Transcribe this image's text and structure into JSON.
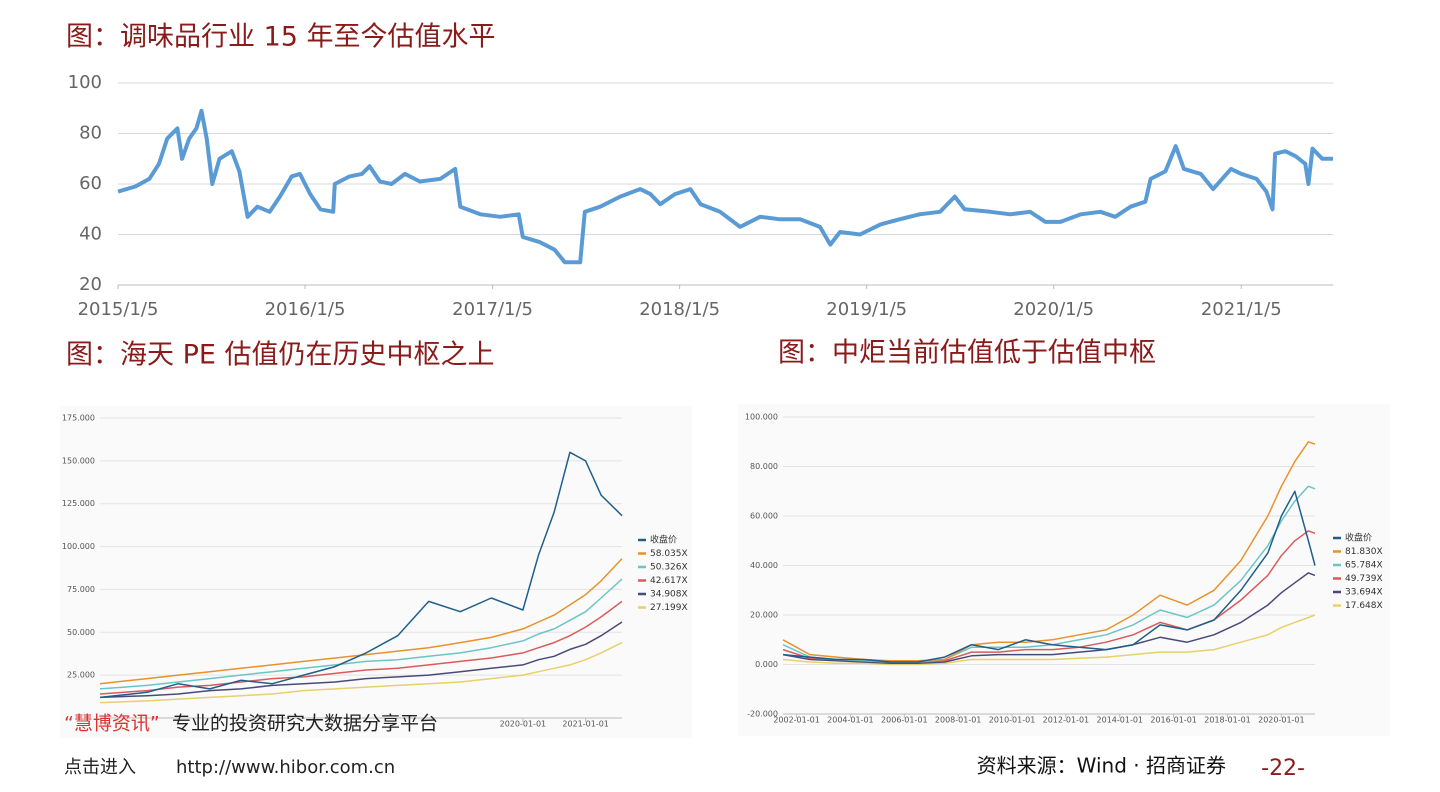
{
  "chart_data": [
    {
      "type": "line",
      "title": "图：调味品行业 15 年至今估值水平",
      "color": "#5b9bd5",
      "grid": true,
      "x": [
        "2015/1/5",
        "2015/2/8",
        "2015/3/7",
        "2015/3/26",
        "2015/4/11",
        "2015/5/1",
        "2015/5/10",
        "2015/5/24",
        "2015/6/7",
        "2015/6/17",
        "2015/6/27",
        "2015/7/8",
        "2015/7/22",
        "2015/8/15",
        "2015/8/30",
        "2015/9/15",
        "2015/10/4",
        "2015/10/28",
        "2015/11/17",
        "2015/12/10",
        "2015/12/26",
        "2016/1/15",
        "2016/2/4",
        "2016/2/29",
        "2016/3/3",
        "2016/4/1",
        "2016/4/25",
        "2016/5/10",
        "2016/5/30",
        "2016/6/22",
        "2016/7/18",
        "2016/8/16",
        "2016/9/25",
        "2016/10/24",
        "2016/11/3",
        "2016/12/12",
        "2017/1/20",
        "2017/2/25",
        "2017/3/5",
        "2017/4/7",
        "2017/5/6",
        "2017/5/26",
        "2017/6/25",
        "2017/7/4",
        "2017/8/3",
        "2017/9/11",
        "2017/10/20",
        "2017/11/9",
        "2017/11/28",
        "2017/12/27",
        "2018/1/26",
        "2018/2/15",
        "2018/3/25",
        "2018/5/3",
        "2018/6/11",
        "2018/7/20",
        "2018/8/28",
        "2018/10/6",
        "2018/10/26",
        "2018/11/14",
        "2018/12/23",
        "2019/2/1",
        "2019/3/10",
        "2019/4/18",
        "2019/5/28",
        "2019/6/26",
        "2019/7/15",
        "2019/9/3",
        "2019/10/12",
        "2019/11/20",
        "2019/12/20",
        "2020/1/18",
        "2020/2/27",
        "2020/4/5",
        "2020/5/4",
        "2020/6/3",
        "2020/7/2",
        "2020/7/12",
        "2020/8/10",
        "2020/8/30",
        "2020/9/15",
        "2020/10/18",
        "2020/11/11",
        "2020/12/16",
        "2021/1/5",
        "2021/2/4",
        "2021/2/23",
        "2021/3/7",
        "2021/3/12",
        "2021/4/1",
        "2021/4/21",
        "2021/5/10",
        "2021/5/16",
        "2021/5/24",
        "2021/6/12",
        "2021/7/3"
      ],
      "values": [
        57,
        59,
        62,
        68,
        78,
        82,
        70,
        78,
        82,
        89,
        78,
        60,
        70,
        73,
        65,
        47,
        51,
        49,
        55,
        63,
        64,
        56,
        50,
        49,
        60,
        63,
        64,
        67,
        61,
        60,
        64,
        61,
        62,
        66,
        51,
        48,
        47,
        48,
        39,
        37,
        34,
        29,
        29,
        49,
        51,
        55,
        58,
        56,
        52,
        56,
        58,
        52,
        49,
        43,
        47,
        46,
        46,
        43,
        36,
        41,
        40,
        44,
        46,
        48,
        49,
        55,
        50,
        49,
        48,
        49,
        45,
        45,
        48,
        49,
        47,
        51,
        53,
        62,
        65,
        75,
        66,
        64,
        58,
        66,
        64,
        62,
        57,
        50,
        72,
        73,
        71,
        68,
        60,
        74,
        70,
        70
      ],
      "xlim": [
        "2015/1/5",
        "2021/7/3"
      ],
      "xticks": [
        "2015/1/5",
        "2016/1/5",
        "2017/1/5",
        "2018/1/5",
        "2019/1/5",
        "2020/1/5",
        "2021/1/5"
      ],
      "ylim": [
        20,
        100
      ],
      "yticks": [
        20,
        40,
        60,
        80,
        100
      ]
    },
    {
      "type": "line",
      "title": "图：海天 PE 估值仍在历史中枢之上",
      "grid": true,
      "x": [
        "2013-04-01",
        "2014-01-01",
        "2014-07-01",
        "2015-01-01",
        "2015-07-01",
        "2016-01-01",
        "2016-07-01",
        "2017-01-01",
        "2017-07-01",
        "2018-01-01",
        "2018-07-01",
        "2019-01-01",
        "2019-07-01",
        "2020-01-01",
        "2020-04-01",
        "2020-07-01",
        "2020-10-01",
        "2021-01-01",
        "2021-04-01",
        "2021-08-01"
      ],
      "series": [
        {
          "name": "收盘价",
          "color": "#1f5f8b",
          "values": [
            12,
            15,
            20,
            17,
            22,
            20,
            25,
            30,
            38,
            48,
            68,
            62,
            70,
            63,
            95,
            120,
            155,
            150,
            130,
            118
          ]
        },
        {
          "name": "58.035X",
          "color": "#e8922a",
          "values": [
            20,
            23,
            25,
            27,
            29,
            31,
            33,
            35,
            37,
            39,
            41,
            44,
            47,
            52,
            56,
            60,
            66,
            72,
            80,
            93
          ]
        },
        {
          "name": "50.326X",
          "color": "#6cc5c5",
          "values": [
            17,
            19,
            21,
            23,
            25,
            27,
            29,
            31,
            33,
            34,
            36,
            38,
            41,
            45,
            49,
            52,
            57,
            62,
            70,
            81
          ]
        },
        {
          "name": "42.617X",
          "color": "#db5b5b",
          "values": [
            14,
            16,
            18,
            19,
            21,
            23,
            24,
            26,
            28,
            29,
            31,
            33,
            35,
            38,
            41,
            44,
            48,
            53,
            59,
            68
          ]
        },
        {
          "name": "34.908X",
          "color": "#4a4a7a",
          "values": [
            12,
            13,
            14,
            16,
            17,
            19,
            20,
            21,
            23,
            24,
            25,
            27,
            29,
            31,
            34,
            36,
            40,
            43,
            48,
            56
          ]
        },
        {
          "name": "27.199X",
          "color": "#e8d06a",
          "values": [
            9,
            10,
            11,
            12,
            13,
            14,
            16,
            17,
            18,
            19,
            20,
            21,
            23,
            25,
            27,
            29,
            31,
            34,
            38,
            44
          ]
        }
      ],
      "xlim": [
        "2013-04-01",
        "2021-08-01"
      ],
      "xticks": [
        "2020-01-01",
        "2021-01-01"
      ],
      "ylim": [
        0,
        175
      ],
      "yticks": [
        {
          "value": 25,
          "label": "25.000"
        },
        {
          "value": 50,
          "label": "50.000"
        },
        {
          "value": 75,
          "label": "75.000"
        },
        {
          "value": 100,
          "label": "100.000"
        },
        {
          "value": 125,
          "label": "125.000"
        },
        {
          "value": 150,
          "label": "150.000"
        },
        {
          "value": 175,
          "label": "175.000"
        }
      ]
    },
    {
      "type": "line",
      "title": "图：中炬当前估值低于估值中枢",
      "grid": true,
      "x": [
        "2001-07-01",
        "2002-07-01",
        "2003-07-01",
        "2004-07-01",
        "2005-07-01",
        "2006-07-01",
        "2007-07-01",
        "2008-07-01",
        "2009-07-01",
        "2010-07-01",
        "2011-07-01",
        "2012-07-01",
        "2013-07-01",
        "2014-07-01",
        "2015-07-01",
        "2016-07-01",
        "2017-07-01",
        "2018-07-01",
        "2019-07-01",
        "2020-01-01",
        "2020-07-01",
        "2021-01-01",
        "2021-04-01"
      ],
      "series": [
        {
          "name": "收盘价",
          "color": "#1f5f8b",
          "values": [
            4,
            3,
            2,
            2,
            1,
            1,
            3,
            8,
            6,
            10,
            8,
            7,
            6,
            8,
            16,
            14,
            18,
            30,
            45,
            60,
            70,
            50,
            40
          ]
        },
        {
          "name": "81.830X",
          "color": "#e8922a",
          "values": [
            10,
            4,
            3,
            2,
            1.5,
            1.5,
            2,
            8,
            9,
            9,
            10,
            12,
            14,
            20,
            28,
            24,
            30,
            42,
            60,
            72,
            82,
            90,
            89
          ]
        },
        {
          "name": "65.784X",
          "color": "#6cc5c5",
          "values": [
            8,
            3,
            2,
            1.5,
            1,
            1,
            2,
            7,
            7,
            7,
            8,
            10,
            12,
            16,
            22,
            19,
            24,
            34,
            48,
            58,
            66,
            72,
            71
          ]
        },
        {
          "name": "49.739X",
          "color": "#db5b5b",
          "values": [
            6,
            2.5,
            2,
            1.5,
            1,
            1,
            1.5,
            5,
            5,
            6,
            6,
            7,
            9,
            12,
            17,
            14,
            18,
            26,
            36,
            44,
            50,
            54,
            53
          ]
        },
        {
          "name": "33.694X",
          "color": "#4a4a7a",
          "values": [
            4,
            2,
            1.5,
            1,
            0.5,
            0.5,
            1,
            3.5,
            4,
            4,
            4,
            5,
            6,
            8,
            11,
            9,
            12,
            17,
            24,
            29,
            33,
            37,
            36
          ]
        },
        {
          "name": "17.648X",
          "color": "#e8d06a",
          "values": [
            2,
            1,
            0.5,
            0.5,
            0,
            0,
            0.5,
            2,
            2,
            2,
            2,
            2.5,
            3,
            4,
            5,
            5,
            6,
            9,
            12,
            15,
            17,
            19,
            20
          ]
        }
      ],
      "xlim": [
        "2001-07-01",
        "2021-04-01"
      ],
      "xticks": [
        "2002-01-01",
        "2004-01-01",
        "2006-01-01",
        "2008-01-01",
        "2010-01-01",
        "2012-01-01",
        "2014-01-01",
        "2016-01-01",
        "2018-01-01",
        "2020-01-01"
      ],
      "ylim": [
        -20,
        100
      ],
      "yticks": [
        {
          "value": -20,
          "label": "-20.000"
        },
        {
          "value": 0,
          "label": "0.000"
        },
        {
          "value": 20,
          "label": "20.000"
        },
        {
          "value": 40,
          "label": "40.000"
        },
        {
          "value": 60,
          "label": "60.000"
        },
        {
          "value": 80,
          "label": "80.000"
        },
        {
          "value": 100,
          "label": "100.000"
        }
      ]
    }
  ],
  "watermark": {
    "brand": "“慧博资讯”",
    "slogan": "专业的投资研究大数据分享平台",
    "enter": "点击进入",
    "url": "http://www.hibor.com.cn"
  },
  "source": "资料来源：Wind · 招商证券",
  "page_number": "-22-"
}
